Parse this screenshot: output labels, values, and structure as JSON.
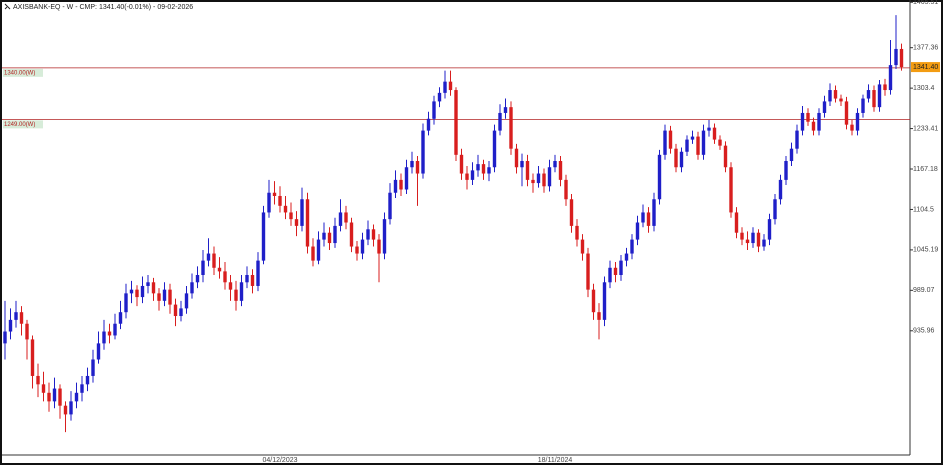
{
  "chart_data": {
    "type": "candlestick",
    "title": "AXISBANK-EQ - W - CMP: 1341.40(-0.01%) - 09-02-2026",
    "up_color": "#1f1fc8",
    "down_color": "#d81e1e",
    "log_scale": true,
    "ylim": [
      790,
      1470
    ],
    "yticks": [
      935.96,
      989.07,
      1045.19,
      1104.5,
      1167.18,
      1233.41,
      1303.4,
      1377.36,
      1465.51
    ],
    "levels": [
      {
        "value": 1340,
        "label": "1340.00(W)"
      },
      {
        "value": 1249,
        "label": "1249.00(W)"
      }
    ],
    "level_color": "#b22222",
    "last_price": {
      "value": 1341.4,
      "label": "1341.40"
    },
    "last_price_color": "#f39c12",
    "categories": [
      null,
      null,
      null,
      null,
      null,
      null,
      null,
      null,
      null,
      null,
      null,
      null,
      null,
      null,
      null,
      null,
      null,
      null,
      null,
      null,
      null,
      null,
      null,
      null,
      null,
      null,
      null,
      null,
      null,
      null,
      null,
      null,
      null,
      null,
      null,
      null,
      null,
      null,
      null,
      null,
      null,
      null,
      null,
      null,
      null,
      null,
      null,
      null,
      null,
      null,
      "04/12/2023",
      null,
      null,
      null,
      null,
      null,
      null,
      null,
      null,
      null,
      null,
      null,
      null,
      null,
      null,
      null,
      null,
      null,
      null,
      null,
      null,
      null,
      null,
      null,
      null,
      null,
      null,
      null,
      null,
      null,
      null,
      null,
      null,
      null,
      null,
      null,
      null,
      null,
      null,
      null,
      null,
      null,
      null,
      null,
      null,
      null,
      null,
      null,
      null,
      null,
      "18/11/2024",
      null,
      null,
      null,
      null,
      null,
      null,
      null,
      null,
      null,
      null,
      null,
      null,
      null,
      null,
      null,
      null,
      null,
      null,
      null,
      null,
      null,
      null,
      null,
      null,
      null,
      null,
      null,
      null,
      null,
      null,
      null,
      null,
      null,
      null,
      null,
      null,
      null,
      null,
      null,
      null,
      null,
      null,
      null,
      null,
      null,
      null,
      null,
      null,
      null,
      null,
      null,
      null,
      null,
      null,
      null,
      null,
      null,
      null,
      null,
      null,
      null,
      null,
      null
    ],
    "values": [
      [
        920,
        975,
        900,
        935
      ],
      [
        935,
        965,
        925,
        950
      ],
      [
        950,
        975,
        940,
        960
      ],
      [
        960,
        968,
        930,
        945
      ],
      [
        945,
        950,
        900,
        925
      ],
      [
        925,
        930,
        865,
        880
      ],
      [
        880,
        895,
        855,
        870
      ],
      [
        870,
        885,
        850,
        860
      ],
      [
        860,
        872,
        838,
        850
      ],
      [
        850,
        878,
        842,
        865
      ],
      [
        865,
        870,
        830,
        845
      ],
      [
        845,
        850,
        815,
        835
      ],
      [
        835,
        862,
        828,
        850
      ],
      [
        850,
        872,
        842,
        860
      ],
      [
        860,
        880,
        850,
        870
      ],
      [
        870,
        890,
        862,
        880
      ],
      [
        880,
        912,
        872,
        900
      ],
      [
        900,
        935,
        895,
        920
      ],
      [
        920,
        950,
        912,
        935
      ],
      [
        935,
        945,
        920,
        930
      ],
      [
        930,
        958,
        925,
        945
      ],
      [
        945,
        975,
        938,
        960
      ],
      [
        960,
        998,
        952,
        985
      ],
      [
        985,
        1002,
        972,
        990
      ],
      [
        990,
        996,
        968,
        980
      ],
      [
        980,
        1008,
        972,
        995
      ],
      [
        995,
        1010,
        985,
        1000
      ],
      [
        1000,
        1006,
        975,
        985
      ],
      [
        985,
        992,
        962,
        975
      ],
      [
        975,
        1000,
        968,
        990
      ],
      [
        990,
        998,
        958,
        970
      ],
      [
        970,
        978,
        942,
        955
      ],
      [
        955,
        975,
        948,
        965
      ],
      [
        965,
        995,
        958,
        985
      ],
      [
        985,
        1012,
        978,
        1000
      ],
      [
        1000,
        1022,
        992,
        1010
      ],
      [
        1010,
        1045,
        1000,
        1030
      ],
      [
        1030,
        1062,
        1022,
        1040
      ],
      [
        1040,
        1050,
        1010,
        1020
      ],
      [
        1020,
        1035,
        1005,
        1015
      ],
      [
        1015,
        1028,
        990,
        1000
      ],
      [
        1000,
        1010,
        975,
        990
      ],
      [
        990,
        1002,
        962,
        975
      ],
      [
        975,
        1010,
        968,
        1000
      ],
      [
        1000,
        1022,
        992,
        1010
      ],
      [
        1010,
        1018,
        985,
        995
      ],
      [
        995,
        1042,
        988,
        1030
      ],
      [
        1030,
        1110,
        1025,
        1100
      ],
      [
        1100,
        1150,
        1092,
        1130
      ],
      [
        1130,
        1148,
        1112,
        1125
      ],
      [
        1125,
        1140,
        1100,
        1110
      ],
      [
        1110,
        1125,
        1090,
        1100
      ],
      [
        1100,
        1115,
        1080,
        1090
      ],
      [
        1090,
        1102,
        1065,
        1080
      ],
      [
        1080,
        1138,
        1072,
        1120
      ],
      [
        1120,
        1130,
        1040,
        1050
      ],
      [
        1050,
        1062,
        1022,
        1030
      ],
      [
        1030,
        1072,
        1025,
        1060
      ],
      [
        1060,
        1085,
        1050,
        1070
      ],
      [
        1070,
        1078,
        1045,
        1055
      ],
      [
        1055,
        1092,
        1048,
        1080
      ],
      [
        1080,
        1120,
        1072,
        1100
      ],
      [
        1100,
        1110,
        1075,
        1085
      ],
      [
        1085,
        1092,
        1042,
        1050
      ],
      [
        1050,
        1058,
        1030,
        1040
      ],
      [
        1040,
        1070,
        1032,
        1060
      ],
      [
        1060,
        1088,
        1052,
        1075
      ],
      [
        1075,
        1082,
        1050,
        1060
      ],
      [
        1060,
        1068,
        1000,
        1040
      ],
      [
        1040,
        1100,
        1032,
        1090
      ],
      [
        1090,
        1145,
        1082,
        1130
      ],
      [
        1130,
        1165,
        1122,
        1150
      ],
      [
        1150,
        1160,
        1125,
        1135
      ],
      [
        1135,
        1182,
        1128,
        1170
      ],
      [
        1170,
        1195,
        1160,
        1180
      ],
      [
        1180,
        1188,
        1110,
        1160
      ],
      [
        1160,
        1242,
        1152,
        1230
      ],
      [
        1230,
        1262,
        1222,
        1250
      ],
      [
        1250,
        1290,
        1240,
        1280
      ],
      [
        1280,
        1305,
        1270,
        1295
      ],
      [
        1295,
        1335,
        1285,
        1315
      ],
      [
        1315,
        1335,
        1290,
        1300
      ],
      [
        1300,
        1305,
        1180,
        1190
      ],
      [
        1190,
        1200,
        1150,
        1160
      ],
      [
        1160,
        1172,
        1135,
        1150
      ],
      [
        1150,
        1178,
        1142,
        1165
      ],
      [
        1165,
        1190,
        1155,
        1175
      ],
      [
        1175,
        1182,
        1150,
        1160
      ],
      [
        1160,
        1180,
        1148,
        1170
      ],
      [
        1170,
        1240,
        1162,
        1230
      ],
      [
        1230,
        1275,
        1222,
        1260
      ],
      [
        1260,
        1285,
        1250,
        1270
      ],
      [
        1270,
        1280,
        1190,
        1200
      ],
      [
        1200,
        1208,
        1160,
        1170
      ],
      [
        1170,
        1192,
        1140,
        1180
      ],
      [
        1180,
        1190,
        1140,
        1150
      ],
      [
        1150,
        1160,
        1130,
        1145
      ],
      [
        1145,
        1172,
        1138,
        1160
      ],
      [
        1160,
        1168,
        1130,
        1140
      ],
      [
        1140,
        1182,
        1132,
        1170
      ],
      [
        1170,
        1190,
        1162,
        1180
      ],
      [
        1180,
        1188,
        1140,
        1150
      ],
      [
        1150,
        1158,
        1110,
        1120
      ],
      [
        1120,
        1128,
        1070,
        1080
      ],
      [
        1080,
        1090,
        1050,
        1060
      ],
      [
        1060,
        1068,
        1030,
        1040
      ],
      [
        1040,
        1048,
        980,
        990
      ],
      [
        990,
        998,
        950,
        960
      ],
      [
        960,
        972,
        925,
        950
      ],
      [
        950,
        1008,
        942,
        1000
      ],
      [
        1000,
        1030,
        992,
        1020
      ],
      [
        1020,
        1028,
        1000,
        1010
      ],
      [
        1010,
        1038,
        1002,
        1030
      ],
      [
        1030,
        1048,
        1022,
        1040
      ],
      [
        1040,
        1068,
        1032,
        1060
      ],
      [
        1060,
        1095,
        1052,
        1085
      ],
      [
        1085,
        1112,
        1078,
        1100
      ],
      [
        1100,
        1108,
        1070,
        1080
      ],
      [
        1080,
        1130,
        1072,
        1120
      ],
      [
        1120,
        1198,
        1112,
        1190
      ],
      [
        1190,
        1240,
        1182,
        1230
      ],
      [
        1230,
        1238,
        1192,
        1200
      ],
      [
        1200,
        1208,
        1162,
        1170
      ],
      [
        1170,
        1202,
        1162,
        1195
      ],
      [
        1195,
        1222,
        1188,
        1215
      ],
      [
        1215,
        1230,
        1208,
        1220
      ],
      [
        1220,
        1228,
        1182,
        1190
      ],
      [
        1190,
        1240,
        1182,
        1230
      ],
      [
        1230,
        1248,
        1220,
        1235
      ],
      [
        1235,
        1242,
        1208,
        1215
      ],
      [
        1215,
        1222,
        1198,
        1205
      ],
      [
        1205,
        1212,
        1162,
        1170
      ],
      [
        1170,
        1178,
        1092,
        1100
      ],
      [
        1100,
        1108,
        1062,
        1070
      ],
      [
        1070,
        1078,
        1052,
        1060
      ],
      [
        1060,
        1072,
        1045,
        1055
      ],
      [
        1055,
        1078,
        1048,
        1070
      ],
      [
        1070,
        1075,
        1042,
        1050
      ],
      [
        1050,
        1068,
        1044,
        1060
      ],
      [
        1060,
        1098,
        1052,
        1090
      ],
      [
        1090,
        1128,
        1082,
        1120
      ],
      [
        1120,
        1158,
        1112,
        1150
      ],
      [
        1150,
        1188,
        1142,
        1180
      ],
      [
        1180,
        1210,
        1172,
        1200
      ],
      [
        1200,
        1240,
        1192,
        1230
      ],
      [
        1230,
        1272,
        1222,
        1260
      ],
      [
        1260,
        1268,
        1238,
        1245
      ],
      [
        1245,
        1252,
        1222,
        1230
      ],
      [
        1230,
        1268,
        1222,
        1260
      ],
      [
        1260,
        1290,
        1252,
        1280
      ],
      [
        1280,
        1312,
        1272,
        1300
      ],
      [
        1300,
        1308,
        1278,
        1285
      ],
      [
        1285,
        1292,
        1272,
        1280
      ],
      [
        1280,
        1288,
        1232,
        1240
      ],
      [
        1240,
        1248,
        1222,
        1230
      ],
      [
        1230,
        1268,
        1222,
        1260
      ],
      [
        1260,
        1292,
        1252,
        1285
      ],
      [
        1285,
        1310,
        1278,
        1300
      ],
      [
        1300,
        1308,
        1262,
        1270
      ],
      [
        1270,
        1318,
        1262,
        1310
      ],
      [
        1310,
        1320,
        1290,
        1300
      ],
      [
        1300,
        1392,
        1292,
        1345
      ],
      [
        1345,
        1440,
        1338,
        1375
      ],
      [
        1375,
        1385,
        1335,
        1341.4
      ]
    ]
  }
}
